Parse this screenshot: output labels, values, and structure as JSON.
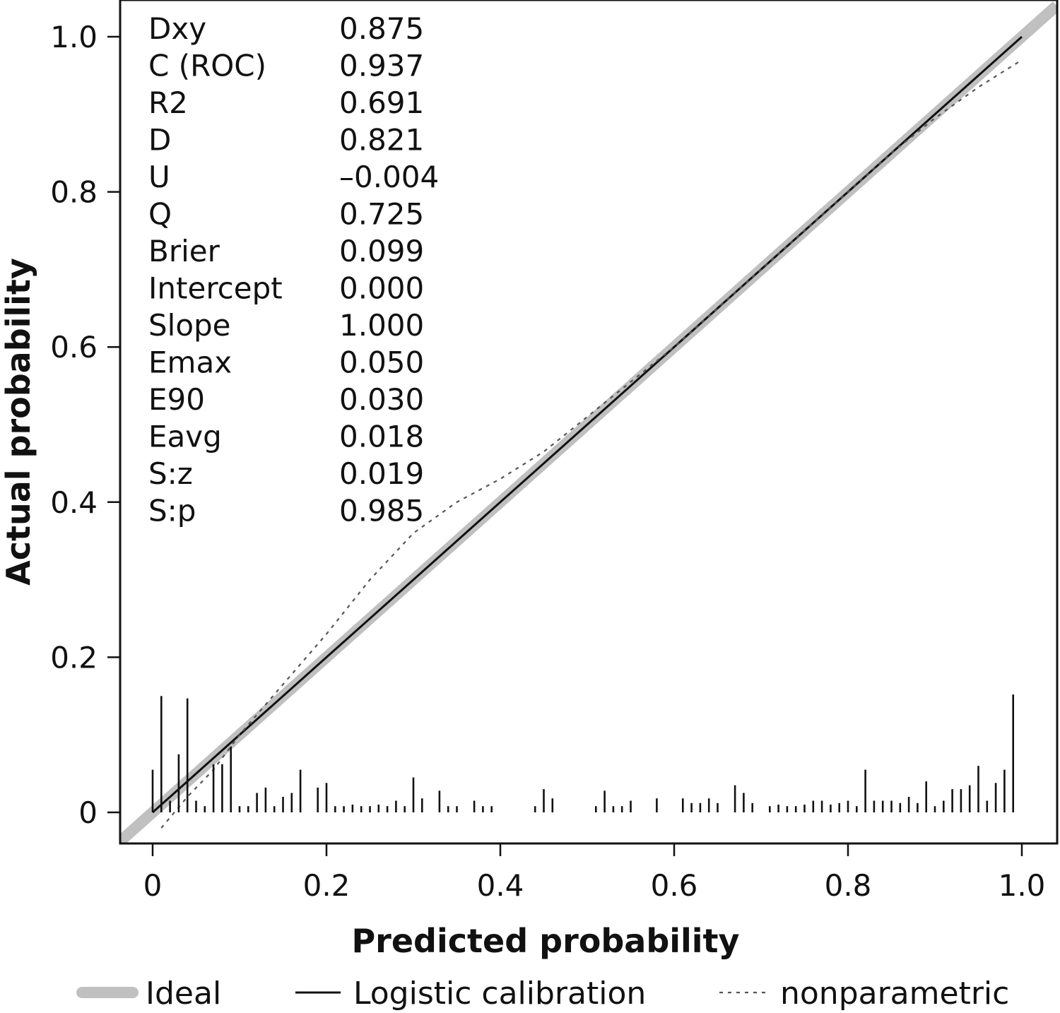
{
  "chart_data": {
    "type": "line",
    "xlabel": "Predicted probability",
    "ylabel": "Actual probability",
    "xlim": [
      -0.035,
      1.04
    ],
    "ylim": [
      -0.035,
      1.04
    ],
    "x_ticks": [
      {
        "value": 0,
        "label": "0"
      },
      {
        "value": 0.2,
        "label": "0.2"
      },
      {
        "value": 0.4,
        "label": "0.4"
      },
      {
        "value": 0.6,
        "label": "0.6"
      },
      {
        "value": 0.8,
        "label": "0.8"
      },
      {
        "value": 1.0,
        "label": "1.0"
      }
    ],
    "y_ticks": [
      {
        "value": 0,
        "label": "0"
      },
      {
        "value": 0.2,
        "label": "0.2"
      },
      {
        "value": 0.4,
        "label": "0.4"
      },
      {
        "value": 0.6,
        "label": "0.6"
      },
      {
        "value": 0.8,
        "label": "0.8"
      },
      {
        "value": 1.0,
        "label": "1.0"
      }
    ],
    "grid": false,
    "legend_position": "bottom",
    "stats": [
      {
        "name": "Dxy",
        "value": "0.875"
      },
      {
        "name": "C (ROC)",
        "value": "0.937"
      },
      {
        "name": "R2",
        "value": "0.691"
      },
      {
        "name": "D",
        "value": "0.821"
      },
      {
        "name": "U",
        "value": "–0.004"
      },
      {
        "name": "Q",
        "value": "0.725"
      },
      {
        "name": "Brier",
        "value": "0.099"
      },
      {
        "name": "Intercept",
        "value": "0.000"
      },
      {
        "name": "Slope",
        "value": "1.000"
      },
      {
        "name": "Emax",
        "value": "0.050"
      },
      {
        "name": "E90",
        "value": "0.030"
      },
      {
        "name": "Eavg",
        "value": "0.018"
      },
      {
        "name": "S:z",
        "value": "0.019"
      },
      {
        "name": "S:p",
        "value": "0.985"
      }
    ],
    "series": [
      {
        "name": "Ideal",
        "style": "thick-gray",
        "color": "#c0c0c0",
        "x": [
          -0.04,
          1.04
        ],
        "y": [
          -0.04,
          1.04
        ]
      },
      {
        "name": "Logistic calibration",
        "style": "solid",
        "color": "#111111",
        "x": [
          0,
          0.03,
          0.06,
          0.1,
          0.2,
          0.3,
          0.4,
          0.5,
          0.6,
          0.7,
          0.8,
          0.9,
          1.0
        ],
        "y": [
          0,
          0.03,
          0.06,
          0.1,
          0.2,
          0.3,
          0.4,
          0.5,
          0.6,
          0.7,
          0.8,
          0.9,
          1.0
        ]
      },
      {
        "name": "nonparametric",
        "style": "dotted",
        "color": "#555555",
        "x": [
          0.01,
          0.04,
          0.07,
          0.1,
          0.15,
          0.2,
          0.25,
          0.3,
          0.35,
          0.4,
          0.45,
          0.5,
          0.55,
          0.6,
          0.65,
          0.7,
          0.75,
          0.8,
          0.85,
          0.9,
          0.95,
          1.0
        ],
        "y": [
          -0.02,
          0.02,
          0.055,
          0.1,
          0.165,
          0.23,
          0.3,
          0.36,
          0.4,
          0.43,
          0.465,
          0.51,
          0.555,
          0.6,
          0.65,
          0.7,
          0.75,
          0.8,
          0.85,
          0.895,
          0.935,
          0.97
        ]
      }
    ],
    "rug": {
      "x": [
        0,
        0.01,
        0.02,
        0.03,
        0.04,
        0.05,
        0.06,
        0.07,
        0.08,
        0.09,
        0.1,
        0.11,
        0.12,
        0.13,
        0.14,
        0.15,
        0.16,
        0.17,
        0.19,
        0.2,
        0.21,
        0.22,
        0.23,
        0.24,
        0.25,
        0.26,
        0.27,
        0.28,
        0.29,
        0.3,
        0.31,
        0.33,
        0.34,
        0.35,
        0.37,
        0.38,
        0.39,
        0.44,
        0.45,
        0.46,
        0.51,
        0.52,
        0.53,
        0.54,
        0.55,
        0.58,
        0.61,
        0.62,
        0.63,
        0.64,
        0.65,
        0.67,
        0.68,
        0.69,
        0.71,
        0.72,
        0.73,
        0.74,
        0.75,
        0.76,
        0.77,
        0.78,
        0.79,
        0.8,
        0.81,
        0.82,
        0.83,
        0.84,
        0.85,
        0.86,
        0.87,
        0.88,
        0.89,
        0.9,
        0.91,
        0.92,
        0.93,
        0.94,
        0.95,
        0.96,
        0.97,
        0.98,
        0.99
      ],
      "height": [
        0.055,
        0.15,
        0.015,
        0.075,
        0.147,
        0.015,
        0.008,
        0.062,
        0.062,
        0.085,
        0.008,
        0.008,
        0.025,
        0.032,
        0.008,
        0.02,
        0.025,
        0.055,
        0.032,
        0.038,
        0.008,
        0.008,
        0.01,
        0.008,
        0.008,
        0.01,
        0.008,
        0.015,
        0.008,
        0.045,
        0.018,
        0.028,
        0.008,
        0.008,
        0.015,
        0.008,
        0.008,
        0.008,
        0.03,
        0.018,
        0.008,
        0.028,
        0.008,
        0.008,
        0.015,
        0.018,
        0.018,
        0.012,
        0.012,
        0.018,
        0.012,
        0.035,
        0.025,
        0.012,
        0.008,
        0.01,
        0.008,
        0.008,
        0.01,
        0.015,
        0.015,
        0.01,
        0.012,
        0.015,
        0.008,
        0.055,
        0.015,
        0.015,
        0.015,
        0.012,
        0.02,
        0.012,
        0.04,
        0.008,
        0.015,
        0.03,
        0.03,
        0.035,
        0.06,
        0.015,
        0.038,
        0.055,
        0.152
      ]
    }
  }
}
